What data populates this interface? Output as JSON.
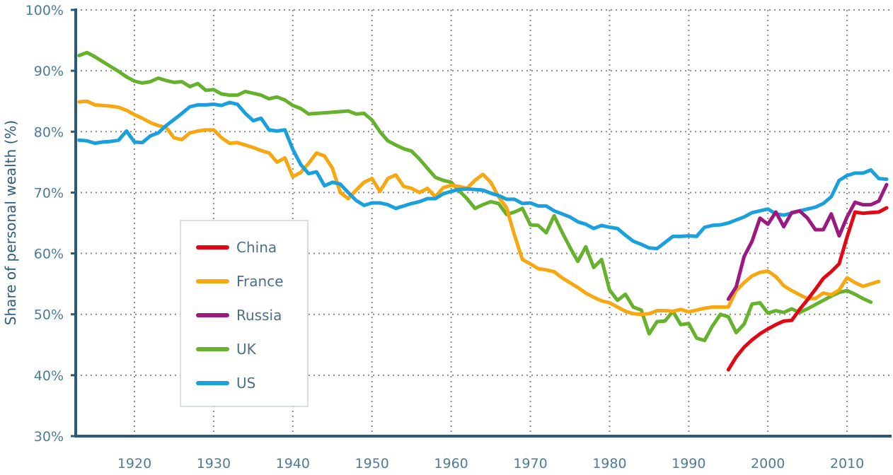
{
  "chart_data": {
    "type": "line",
    "title": "",
    "xlabel": "",
    "ylabel": "Share of personal wealth (%)",
    "ylim": [
      30,
      100
    ],
    "y_ticks": [
      "30%",
      "40%",
      "50%",
      "60%",
      "70%",
      "80%",
      "90%",
      "100%"
    ],
    "y_tick_values": [
      30,
      40,
      50,
      60,
      70,
      80,
      90,
      100
    ],
    "x_ticks": [
      "1920",
      "1930",
      "1940",
      "1950",
      "1960",
      "1970",
      "1980",
      "1990",
      "2000",
      "2010"
    ],
    "x_tick_values": [
      1920,
      1930,
      1940,
      1950,
      1960,
      1970,
      1980,
      1990,
      2000,
      2010
    ],
    "grid": true,
    "legend_position": "bottom-left",
    "series": [
      {
        "name": "China",
        "color": "#e30613",
        "start_year": 1995,
        "values": [
          40.9,
          43,
          44.6,
          45.8,
          46.8,
          47.6,
          48.3,
          48.9,
          49,
          50.8,
          52.4,
          54.1,
          55.9,
          57,
          58.3,
          62.7,
          66.8,
          66.6,
          66.7,
          66.8,
          67.5
        ]
      },
      {
        "name": "France",
        "color": "#f7a70f",
        "start_year": 1913,
        "values": [
          84.9,
          85,
          84.4,
          84.3,
          84.2,
          84,
          83.5,
          82.8,
          82.2,
          81.5,
          81,
          80.7,
          79,
          78.7,
          79.8,
          80.1,
          80.3,
          80.3,
          79,
          78.1,
          78.2,
          77.8,
          77.4,
          76.9,
          76.5,
          75,
          75.7,
          72.6,
          73.3,
          74.8,
          76.5,
          76,
          74,
          70,
          69,
          70.4,
          71.7,
          72.3,
          70.2,
          72.3,
          72.9,
          71,
          70.7,
          70,
          70.7,
          69.3,
          70.8,
          71.2,
          71,
          70.7,
          72,
          73,
          71.7,
          69.3,
          67.5,
          63,
          59,
          58.3,
          57.5,
          57.3,
          57,
          56,
          55.2,
          54.4,
          53.5,
          52.8,
          52.2,
          51.9,
          51.2,
          50.5,
          50.1,
          50,
          50.1,
          50.6,
          50.6,
          50.5,
          50.8,
          50.4,
          50.7,
          51,
          51.2,
          51.2,
          51.2,
          53.9,
          55.2,
          56.3,
          56.9,
          57.1,
          56.2,
          54.7,
          53.9,
          53.2,
          52.6,
          52.6,
          53.5,
          53.2,
          54,
          56,
          55.2,
          54.6,
          55,
          55.4
        ]
      },
      {
        "name": "Russia",
        "color": "#9c1a7f",
        "start_year": 1995,
        "values": [
          52.5,
          54.5,
          59.5,
          62,
          65.8,
          64.8,
          66.8,
          64.4,
          66.7,
          67,
          65.8,
          63.9,
          63.9,
          66.5,
          62.9,
          66,
          68.4,
          68,
          68,
          68.6,
          71.3
        ]
      },
      {
        "name": "UK",
        "color": "#67b22d",
        "start_year": 1913,
        "values": [
          92.5,
          93,
          92.3,
          91.5,
          90.7,
          89.9,
          89,
          88.3,
          88,
          88.2,
          88.8,
          88.4,
          88.1,
          88.2,
          87.4,
          87.9,
          86.8,
          86.9,
          86.2,
          86,
          86,
          86.6,
          86.3,
          86,
          85.4,
          85.7,
          85.2,
          84.3,
          83.8,
          82.9,
          83,
          83.1,
          83.2,
          83.3,
          83.4,
          82.9,
          83,
          81.9,
          80,
          78.5,
          77.8,
          77.2,
          76.8,
          75.5,
          74,
          72.5,
          72,
          71.7,
          70.3,
          69,
          67.4,
          68,
          68.5,
          68.2,
          66.4,
          66.8,
          67.4,
          64.7,
          64.6,
          63.4,
          66.2,
          63.5,
          61,
          58.7,
          61.1,
          57.7,
          59,
          54,
          52.3,
          53.3,
          51.2,
          50.7,
          46.8,
          48.8,
          48.9,
          50.5,
          48.3,
          48.5,
          46.1,
          45.7,
          48.1,
          50,
          49.6,
          47,
          48.4,
          51.7,
          51.9,
          50.2,
          50.6,
          50.3,
          50.9,
          50.3,
          50.9,
          51.6,
          52.3,
          53,
          53.6,
          53.9,
          53.3,
          52.6,
          52
        ]
      },
      {
        "name": "US",
        "color": "#1aa0dd",
        "start_year": 1913,
        "values": [
          78.6,
          78.5,
          78.1,
          78.3,
          78.4,
          78.6,
          80.1,
          78.3,
          78.2,
          79.3,
          79.8,
          81,
          82,
          83,
          84.1,
          84.4,
          84.4,
          84.5,
          84.3,
          84.8,
          84.5,
          83,
          81.8,
          82.2,
          80.3,
          80.1,
          80.3,
          77.1,
          74.6,
          73.1,
          73.4,
          71.1,
          71.7,
          71.4,
          70,
          68.7,
          67.9,
          68.3,
          68.3,
          68,
          67.4,
          67.8,
          68.2,
          68.5,
          69,
          69,
          69.8,
          70.2,
          70.5,
          70.6,
          70.5,
          70.4,
          69.9,
          69.5,
          68.9,
          68.9,
          68.2,
          68.3,
          67.8,
          67.8,
          67,
          66.5,
          66,
          65.2,
          64.8,
          64.1,
          64.6,
          64.3,
          64.1,
          63,
          62,
          61.5,
          60.9,
          60.8,
          61.8,
          62.8,
          62.8,
          62.9,
          62.8,
          64.3,
          64.6,
          64.7,
          65,
          65.5,
          66,
          66.7,
          67,
          67.3,
          66.5,
          66.3,
          66.6,
          67,
          67.3,
          67.6,
          68.2,
          69.3,
          72,
          72.8,
          73.2,
          73.2,
          73.7,
          72.3,
          72.2
        ]
      }
    ]
  }
}
